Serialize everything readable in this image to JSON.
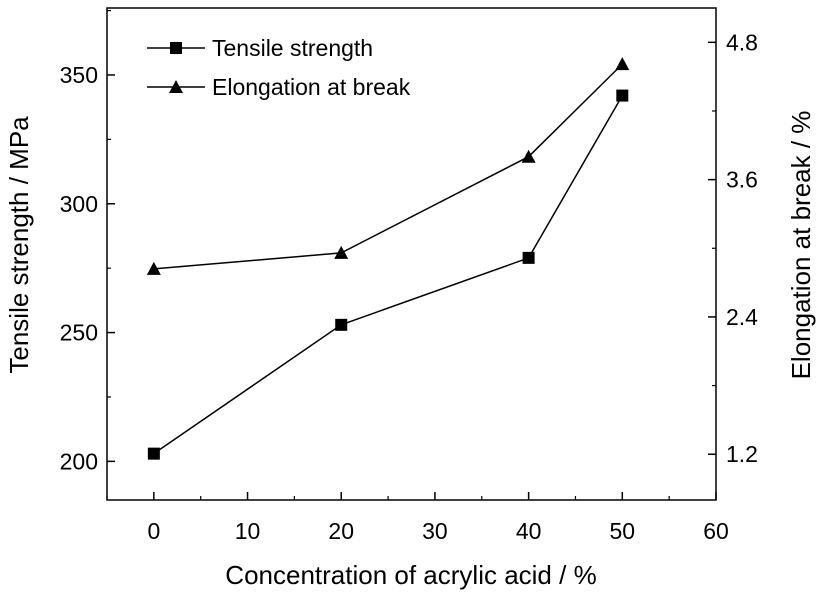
{
  "chart_data": {
    "type": "line",
    "xlabel": "Concentration of  acrylic acid / %",
    "ylabel_left": "Tensile strength / MPa",
    "ylabel_right": "Elongation at break  / %",
    "x_ticks": [
      "0",
      "10",
      "20",
      "30",
      "40",
      "50",
      "60"
    ],
    "xlim": [
      -5,
      60
    ],
    "y_left_ticks": [
      "200",
      "250",
      "300",
      "350"
    ],
    "ylim_left": [
      185,
      376
    ],
    "y_right_ticks": [
      "1.2",
      "2.4",
      "3.6",
      "4.8"
    ],
    "ylim_right": [
      0.8,
      5.1
    ],
    "legend_position": "top-left",
    "series": [
      {
        "name": "Tensile strength",
        "marker": "square",
        "axis": "left",
        "x": [
          0,
          20,
          40,
          50
        ],
        "values": [
          203,
          253,
          279,
          342
        ]
      },
      {
        "name": "Elongation at break",
        "marker": "triangle",
        "axis": "right",
        "x": [
          0,
          20,
          40,
          50
        ],
        "values": [
          2.82,
          2.96,
          3.8,
          4.61
        ]
      }
    ],
    "grid": false
  }
}
